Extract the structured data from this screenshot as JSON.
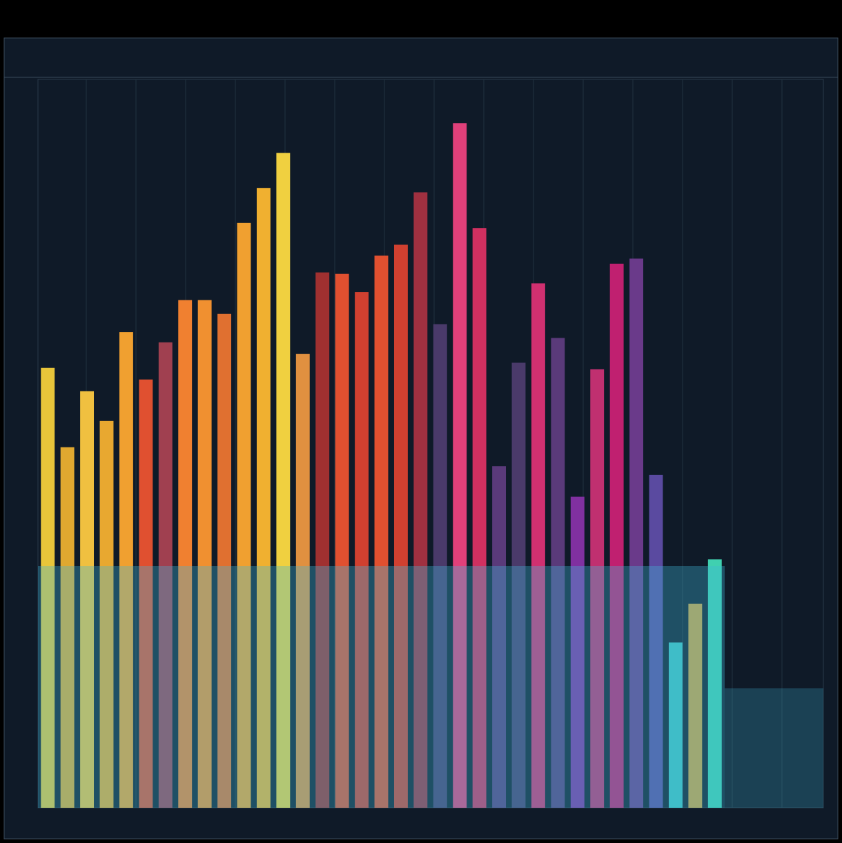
{
  "chart_data": {
    "type": "bar",
    "values": [
      60.4,
      49.5,
      57.2,
      53.1,
      65.3,
      58.8,
      63.9,
      69.7,
      69.7,
      67.8,
      80.3,
      85.1,
      89.9,
      62.3,
      73.5,
      73.3,
      70.8,
      75.8,
      77.3,
      84.5,
      66.4,
      94.0,
      79.6,
      46.9,
      61.1,
      72.0,
      64.5,
      42.7,
      60.2,
      74.7,
      75.4,
      45.7,
      22.7,
      28.0,
      34.1
    ],
    "colors": [
      "#e8c53a",
      "#e0a830",
      "#f0c040",
      "#e8a830",
      "#f0a030",
      "#e05030",
      "#a04050",
      "#f08030",
      "#f09030",
      "#e07030",
      "#f0a030",
      "#f0b030",
      "#f0d040",
      "#e09040",
      "#a03030",
      "#e05030",
      "#d04030",
      "#e05030",
      "#d04030",
      "#a03040",
      "#4a3a6a",
      "#e0407a",
      "#d03060",
      "#5a3a7a",
      "#4a3a6a",
      "#d03070",
      "#5a3a7a",
      "#8030a0",
      "#c03070",
      "#c02070",
      "#6a3a8a",
      "#5a4aa0",
      "#40c0c0",
      "#d0a040",
      "#40d0b0"
    ],
    "ylim": [
      0,
      100
    ]
  }
}
